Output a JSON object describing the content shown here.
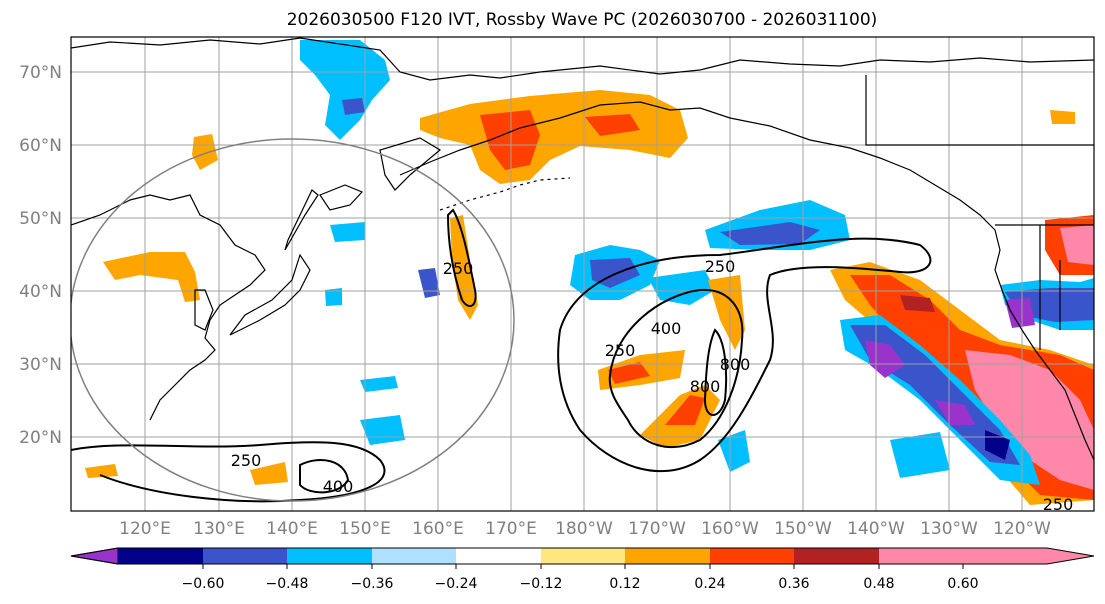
{
  "title": "2026030500 F120 IVT, Rossby Wave PC (2026030700 - 2026031100)",
  "lat_labels": [
    "70°N",
    "60°N",
    "50°N",
    "40°N",
    "30°N",
    "20°N"
  ],
  "lon_labels": [
    "120°E",
    "130°E",
    "140°E",
    "150°E",
    "160°E",
    "170°E",
    "180°W",
    "170°W",
    "160°W",
    "150°W",
    "140°W",
    "130°W",
    "120°W"
  ],
  "colorbar": {
    "colors": [
      "#9933cc",
      "#00008b",
      "#3a55cc",
      "#00bfff",
      "#b0e0ff",
      "#ffffff",
      "#ffe680",
      "#ffa500",
      "#ff4000",
      "#b22222",
      "#ff88aa"
    ],
    "ticks": [
      "−0.60",
      "−0.48",
      "−0.36",
      "−0.24",
      "−0.12",
      "0.12",
      "0.24",
      "0.36",
      "0.48",
      "0.60"
    ]
  },
  "contour_labels": [
    "250",
    "250",
    "400",
    "250",
    "800",
    "800",
    "250",
    "400",
    "250"
  ]
}
